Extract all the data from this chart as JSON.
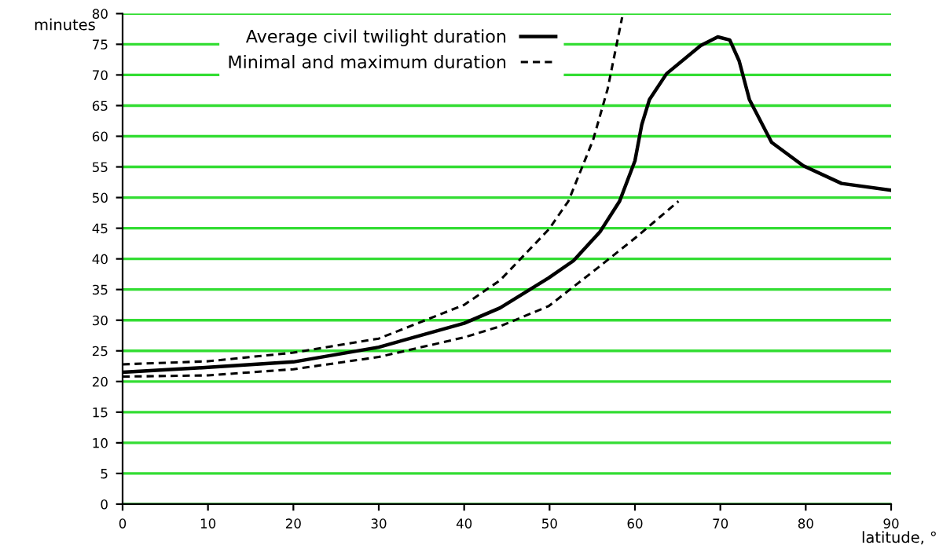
{
  "chart_data": {
    "type": "line",
    "ylabel": "minutes",
    "xlabel": "latitude, °",
    "xlim": [
      0,
      90
    ],
    "xticks": [
      0,
      10,
      20,
      30,
      40,
      50,
      60,
      70,
      80,
      90
    ],
    "ylim": [
      0,
      80
    ],
    "yticks": [
      0,
      5,
      10,
      15,
      20,
      25,
      30,
      35,
      40,
      45,
      50,
      55,
      60,
      65,
      70,
      75,
      80
    ],
    "grid": "y",
    "legend": "top",
    "marker": "none",
    "series": [
      {
        "name": "Average civil twilight duration",
        "color": "#000000",
        "line_style": "solid",
        "x": [
          0,
          10,
          20,
          30,
          40,
          44.2,
          49.9,
          52.8,
          55.9,
          58.2,
          60,
          60.8,
          61.7,
          63.7,
          67.7,
          69.7,
          71.1,
          72.2,
          73.4,
          76,
          79.7,
          84.2,
          89.9
        ],
        "values": [
          21.5,
          22.3,
          23.2,
          25.6,
          29.5,
          32,
          36.9,
          39.7,
          44.4,
          49.4,
          56,
          61.9,
          66,
          70.2,
          74.8,
          76.2,
          75.7,
          72.3,
          66,
          59,
          55.2,
          52.3,
          51.2
        ]
      },
      {
        "name": "Minimal and maximum duration",
        "color": "#000000",
        "line_style": "dashed",
        "x": [
          0,
          10,
          20,
          30,
          40,
          44.2,
          49.9,
          52.2,
          55.1,
          56.8,
          58.5
        ],
        "values": [
          22.8,
          23.3,
          24.7,
          27,
          32.5,
          36.5,
          44.8,
          49.4,
          59.4,
          67.7,
          79.4
        ]
      },
      {
        "color": "#000000",
        "line_style": "dashed",
        "x": [
          0,
          10,
          20,
          30,
          40,
          44.2,
          49.9,
          55.7,
          60.2,
          65.1
        ],
        "values": [
          20.8,
          21,
          22,
          24,
          27.2,
          29,
          32.3,
          38.6,
          43.6,
          49.4
        ]
      }
    ]
  }
}
